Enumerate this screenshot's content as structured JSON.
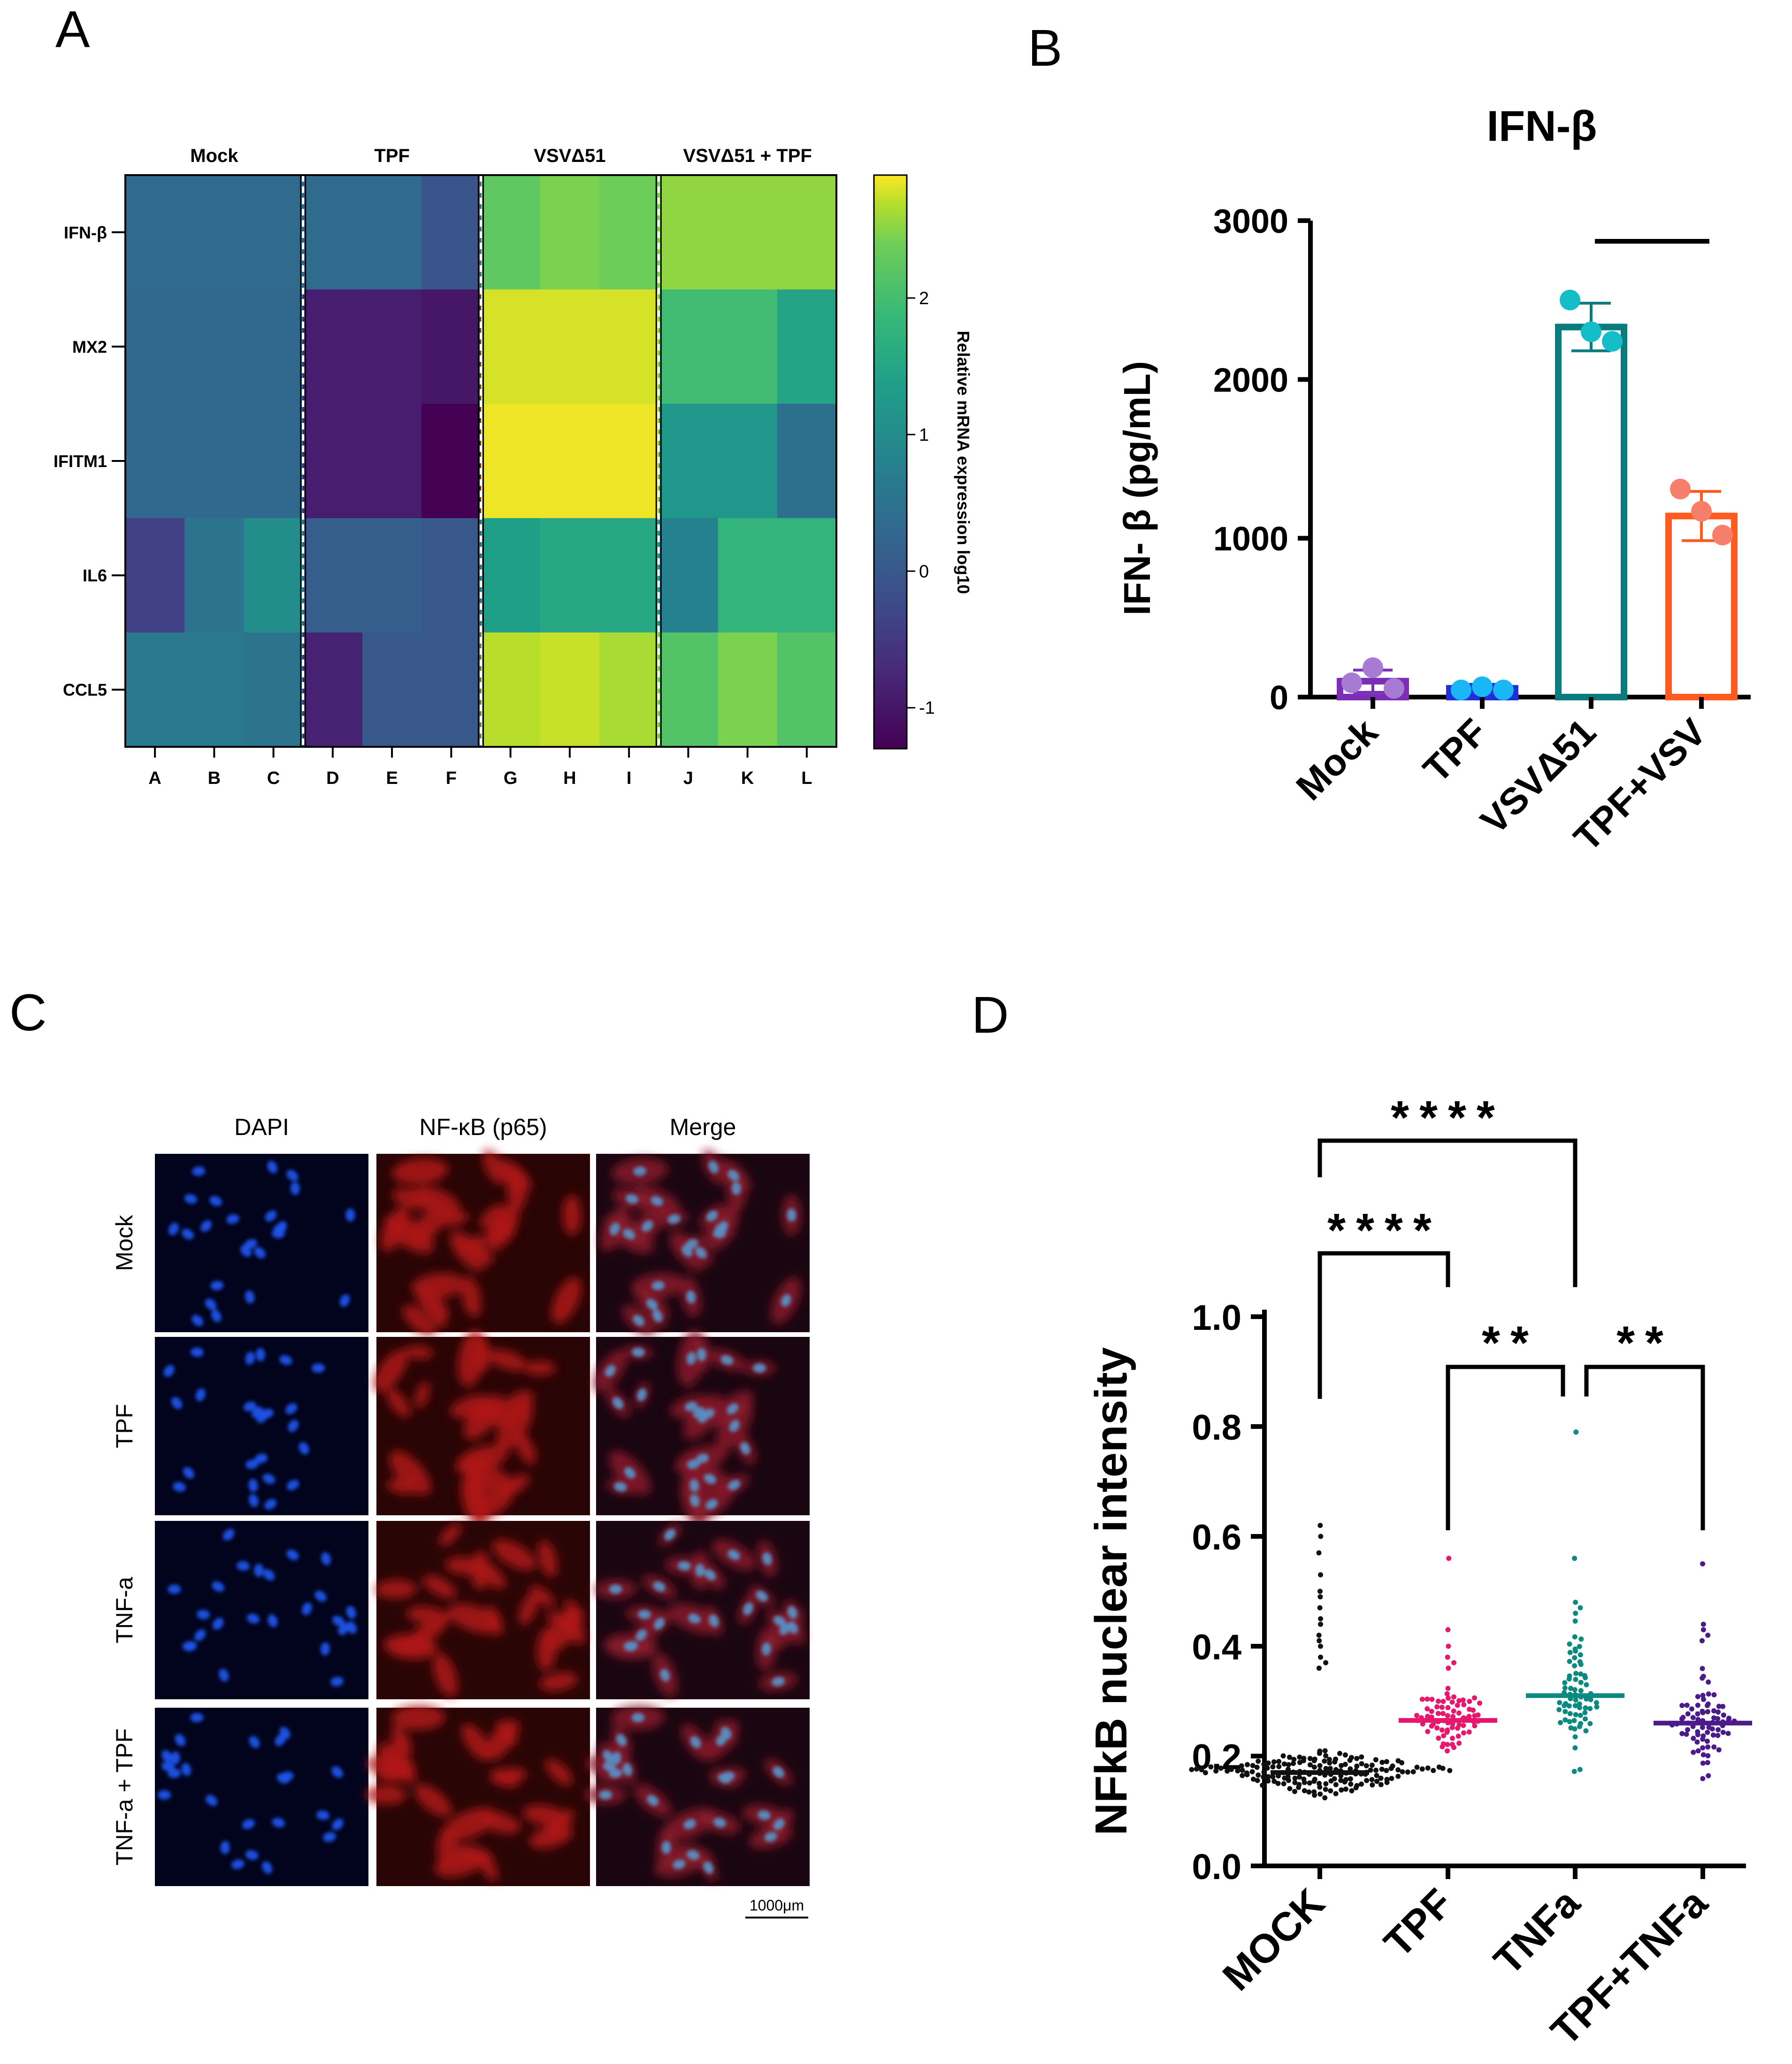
{
  "panels": {
    "a": "A",
    "b": "B",
    "c": "C",
    "d": "D"
  },
  "chart_data": [
    {
      "id": "A",
      "type": "heatmap",
      "title": "",
      "group_labels": [
        "Mock",
        "TPF",
        "VSVΔ51",
        "VSVΔ51 + TPF"
      ],
      "columns": [
        "A",
        "B",
        "C",
        "D",
        "E",
        "F",
        "G",
        "H",
        "I",
        "J",
        "K",
        "L"
      ],
      "rows": [
        "IFN-β",
        "MX2",
        "IFITM1",
        "IL6",
        "CCL5"
      ],
      "values": [
        [
          0.15,
          0.15,
          0.15,
          0.15,
          0.15,
          -0.2,
          1.85,
          2.05,
          1.95,
          2.2,
          2.2,
          2.2
        ],
        [
          0.1,
          0.1,
          0.1,
          -0.95,
          -0.95,
          -1.05,
          2.65,
          2.65,
          2.65,
          1.6,
          1.6,
          1.15
        ],
        [
          0.1,
          0.1,
          0.1,
          -0.95,
          -0.95,
          -1.35,
          2.8,
          2.8,
          2.8,
          0.9,
          0.9,
          0.25
        ],
        [
          -0.5,
          0.3,
          0.75,
          -0.05,
          -0.05,
          -0.15,
          1.05,
          1.2,
          1.2,
          0.55,
          1.45,
          1.45
        ],
        [
          0.4,
          0.4,
          0.3,
          -0.9,
          -0.15,
          -0.15,
          2.45,
          2.55,
          2.35,
          1.75,
          2.05,
          1.75
        ]
      ],
      "colorbar": {
        "label": "Relative mRNA expression log10",
        "ticks": [
          "2",
          "1",
          "0",
          "-1"
        ],
        "range": [
          -1.3,
          2.9
        ]
      }
    },
    {
      "id": "B",
      "type": "bar",
      "title": "IFN-β",
      "ylabel": "IFN- β (pg/mL)",
      "categories": [
        "Mock",
        "TPF",
        "VSVΔ51",
        "TPF+VSV"
      ],
      "values": [
        100,
        55,
        2330,
        1140
      ],
      "errors": [
        70,
        25,
        150,
        155
      ],
      "points": [
        [
          90,
          185,
          55
        ],
        [
          45,
          65,
          45
        ],
        [
          2500,
          2300,
          2240
        ],
        [
          1310,
          1170,
          1020
        ]
      ],
      "ylim": [
        0,
        3000
      ],
      "yticks": [
        "0",
        "1000",
        "2000",
        "3000"
      ],
      "colors": [
        "#7b2fb5",
        "#2030d8",
        "#0b7c7e",
        "#ff5a1f"
      ],
      "point_colors": [
        "#a77bd4",
        "#19b7f5",
        "#14bec9",
        "#f77e6a"
      ]
    },
    {
      "id": "D",
      "type": "scatter",
      "title": "",
      "ylabel": "NFkB nuclear intensity",
      "categories": [
        "MOCK",
        "TPF",
        "TNFa",
        "TPF+TNFa"
      ],
      "medians": [
        0.17,
        0.265,
        0.31,
        0.26
      ],
      "ylim": [
        0,
        1.0
      ],
      "yticks": [
        "0.0",
        "0.2",
        "0.4",
        "0.6",
        "0.8",
        "1.0"
      ],
      "colors": [
        "#111111",
        "#e8176e",
        "#0c8a80",
        "#4b1b8a"
      ],
      "distributions": [
        {
          "n": 190,
          "median": 0.17,
          "spread": 0.035,
          "min": 0.08,
          "max": 0.62,
          "tail": [
            0.62,
            0.6,
            0.57,
            0.53,
            0.5,
            0.49,
            0.47,
            0.45,
            0.44,
            0.42,
            0.41,
            0.4,
            0.38,
            0.37,
            0.36
          ]
        },
        {
          "n": 80,
          "median": 0.265,
          "spread": 0.045,
          "min": 0.14,
          "max": 0.56,
          "tail": [
            0.56,
            0.43,
            0.4,
            0.38,
            0.37,
            0.36
          ]
        },
        {
          "n": 75,
          "median": 0.31,
          "spread": 0.085,
          "min": 0.14,
          "max": 0.79,
          "tail": [
            0.79,
            0.56,
            0.48,
            0.47,
            0.46
          ]
        },
        {
          "n": 80,
          "median": 0.26,
          "spread": 0.07,
          "min": 0.12,
          "max": 0.55,
          "tail": [
            0.55,
            0.44,
            0.43,
            0.42,
            0.41
          ]
        }
      ],
      "significance": [
        {
          "from": "MOCK",
          "to": "TNFa",
          "label": "****"
        },
        {
          "from": "MOCK",
          "to": "TPF",
          "label": "****"
        },
        {
          "from": "TPF",
          "to": "TNFa",
          "label": "**"
        },
        {
          "from": "TNFa",
          "to": "TPF+TNFa",
          "label": "**"
        }
      ]
    }
  ],
  "micrographs": {
    "columns": [
      "DAPI",
      "NF-κB (p65)",
      "Merge"
    ],
    "rows": [
      "Mock",
      "TPF",
      "TNF-a",
      "TNF-a + TPF"
    ],
    "scale_bar": "1000μm"
  }
}
